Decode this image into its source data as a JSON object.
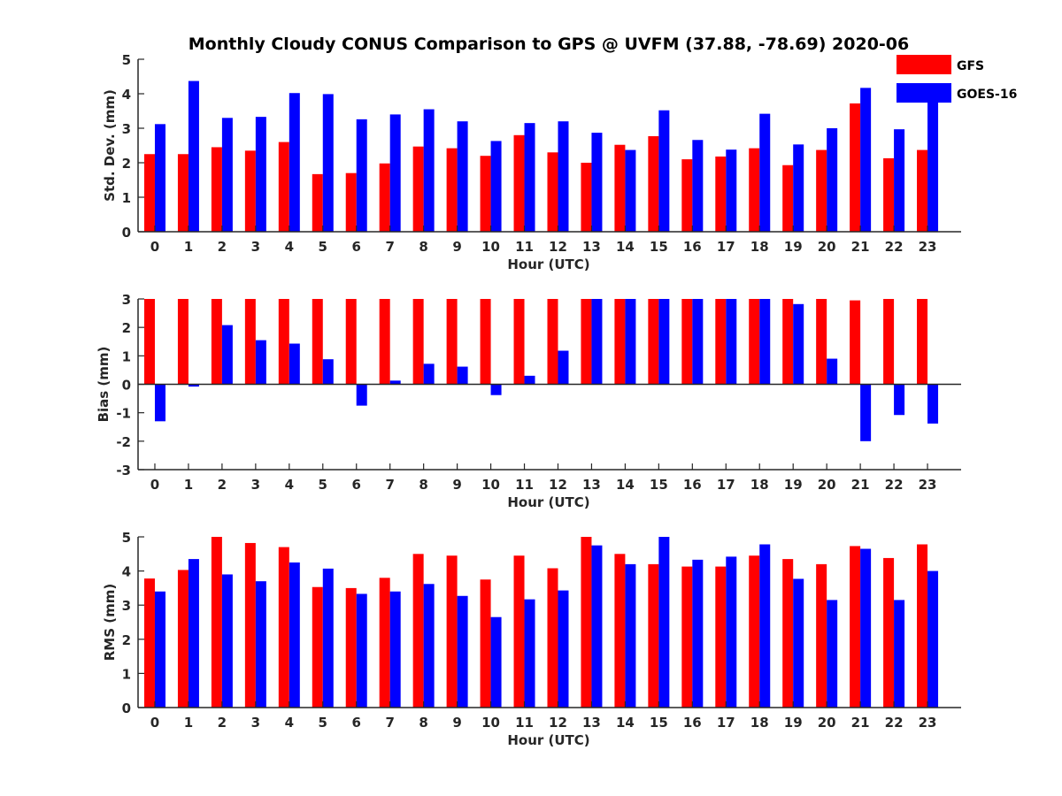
{
  "figure": {
    "title": "Monthly Cloudy CONUS Comparison to GPS @ UVFM (37.88, -78.69) 2020-06"
  },
  "legend": {
    "placement": "top-right",
    "items": [
      {
        "label": "GFS",
        "color": "#ff0000"
      },
      {
        "label": "GOES-16",
        "color": "#0000ff"
      }
    ]
  },
  "chart_data": [
    {
      "type": "bar",
      "xlabel": "Hour (UTC)",
      "ylabel": "Std. Dev. (mm)",
      "ylim": [
        0,
        5
      ],
      "yticks": [
        0,
        1,
        2,
        3,
        4,
        5
      ],
      "categories": [
        "0",
        "1",
        "2",
        "3",
        "4",
        "5",
        "6",
        "7",
        "8",
        "9",
        "10",
        "11",
        "12",
        "13",
        "14",
        "15",
        "16",
        "17",
        "18",
        "19",
        "20",
        "21",
        "22",
        "23"
      ],
      "series": [
        {
          "name": "GFS",
          "color": "#ff0000",
          "values": [
            2.25,
            2.25,
            2.45,
            2.35,
            2.6,
            1.67,
            1.7,
            1.98,
            2.47,
            2.42,
            2.2,
            2.8,
            2.3,
            2.0,
            2.52,
            2.77,
            2.1,
            2.18,
            2.42,
            1.93,
            2.37,
            3.72,
            2.13,
            2.37
          ]
        },
        {
          "name": "GOES-16",
          "color": "#0000ff",
          "values": [
            3.12,
            4.37,
            3.3,
            3.33,
            4.02,
            3.99,
            3.26,
            3.4,
            3.55,
            3.2,
            2.63,
            3.15,
            3.2,
            2.87,
            2.37,
            3.52,
            2.66,
            2.38,
            3.42,
            2.53,
            3.0,
            4.17,
            2.97,
            4.2
          ]
        }
      ]
    },
    {
      "type": "bar",
      "xlabel": "Hour (UTC)",
      "ylabel": "Bias (mm)",
      "ylim": [
        -3,
        3
      ],
      "yticks": [
        -3,
        -2,
        -1,
        0,
        1,
        2,
        3
      ],
      "categories": [
        "0",
        "1",
        "2",
        "3",
        "4",
        "5",
        "6",
        "7",
        "8",
        "9",
        "10",
        "11",
        "12",
        "13",
        "14",
        "15",
        "16",
        "17",
        "18",
        "19",
        "20",
        "21",
        "22",
        "23"
      ],
      "series": [
        {
          "name": "GFS",
          "color": "#ff0000",
          "values": [
            3,
            3,
            3,
            3,
            3,
            3,
            3,
            3,
            3,
            3,
            3,
            3,
            3,
            3,
            3,
            3,
            3,
            3,
            3,
            3,
            3,
            2.95,
            3,
            3
          ]
        },
        {
          "name": "GOES-16",
          "color": "#0000ff",
          "values": [
            -1.3,
            -0.08,
            2.08,
            1.55,
            1.43,
            0.88,
            -0.75,
            0.13,
            0.72,
            0.62,
            -0.38,
            0.3,
            1.18,
            3,
            3,
            3,
            3,
            3,
            3,
            2.82,
            0.9,
            -2.0,
            -1.08,
            -1.38
          ]
        }
      ]
    },
    {
      "type": "bar",
      "xlabel": "Hour (UTC)",
      "ylabel": "RMS (mm)",
      "ylim": [
        0,
        5
      ],
      "yticks": [
        0,
        1,
        2,
        3,
        4,
        5
      ],
      "categories": [
        "0",
        "1",
        "2",
        "3",
        "4",
        "5",
        "6",
        "7",
        "8",
        "9",
        "10",
        "11",
        "12",
        "13",
        "14",
        "15",
        "16",
        "17",
        "18",
        "19",
        "20",
        "21",
        "22",
        "23"
      ],
      "series": [
        {
          "name": "GFS",
          "color": "#ff0000",
          "values": [
            3.78,
            4.03,
            5.0,
            4.82,
            4.7,
            3.53,
            3.5,
            3.8,
            4.5,
            4.45,
            3.75,
            4.45,
            4.08,
            5.0,
            4.5,
            4.2,
            4.13,
            4.13,
            4.45,
            4.35,
            4.2,
            4.73,
            4.38,
            4.78
          ]
        },
        {
          "name": "GOES-16",
          "color": "#0000ff",
          "values": [
            3.4,
            4.35,
            3.9,
            3.7,
            4.25,
            4.07,
            3.33,
            3.4,
            3.62,
            3.27,
            2.65,
            3.17,
            3.43,
            4.75,
            4.2,
            5.0,
            4.33,
            4.42,
            4.78,
            3.77,
            3.15,
            4.65,
            3.15,
            4.0
          ]
        }
      ]
    }
  ]
}
